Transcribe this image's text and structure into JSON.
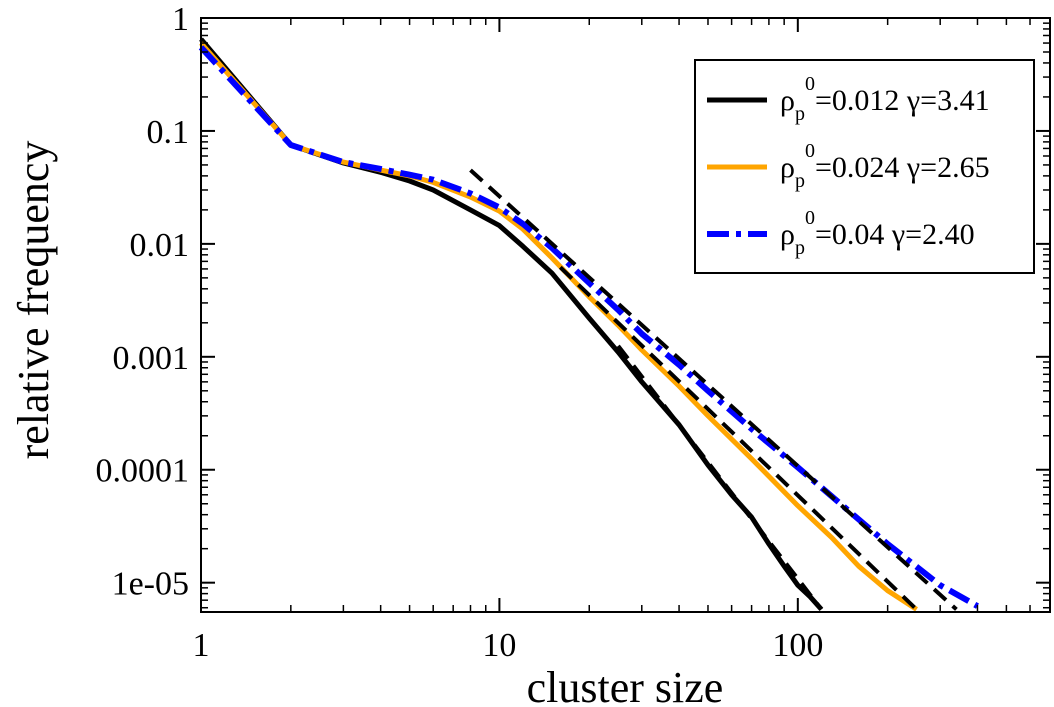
{
  "chart_data": {
    "type": "line",
    "title": "",
    "xlabel": "cluster size",
    "ylabel": "relative frequency",
    "xscale": "log",
    "yscale": "log",
    "xlim": [
      1,
      700
    ],
    "ylim": [
      5.5e-06,
      1
    ],
    "x_ticks": [
      1,
      10,
      100
    ],
    "x_tick_labels": [
      "1",
      "10",
      "100"
    ],
    "y_ticks": [
      1,
      0.1,
      0.01,
      0.001,
      0.0001,
      1e-05
    ],
    "y_tick_labels": [
      "1",
      "0.1",
      "0.01",
      "0.001",
      "0.0001",
      "1e-05"
    ],
    "legend_position": "top-right",
    "series": [
      {
        "name": "ρp0=0.012 γ=3.41",
        "legend": {
          "rho": "ρ",
          "sub": "p",
          "sup": "0",
          "text": "=0.012 γ=3.41"
        },
        "color": "#000000",
        "style": "solid",
        "gamma": 3.41,
        "x": [
          1,
          2,
          3,
          4,
          5,
          6,
          8,
          10,
          12,
          15,
          20,
          25,
          30,
          40,
          50,
          60,
          70,
          80,
          90,
          100,
          110,
          120
        ],
        "y": [
          0.65,
          0.075,
          0.052,
          0.043,
          0.036,
          0.03,
          0.02,
          0.0145,
          0.0095,
          0.0055,
          0.0022,
          0.0011,
          0.0006,
          0.00025,
          0.00011,
          6e-05,
          3.8e-05,
          2.2e-05,
          1.4e-05,
          9.5e-06,
          7.5e-06,
          5.8e-06
        ]
      },
      {
        "name": "ρp0=0.024 γ=2.65",
        "legend": {
          "rho": "ρ",
          "sub": "p",
          "sup": "0",
          "text": "=0.024 γ=2.65"
        },
        "color": "#ffa500",
        "style": "solid",
        "gamma": 2.65,
        "x": [
          1,
          2,
          3,
          4,
          5,
          6,
          8,
          10,
          12,
          15,
          20,
          25,
          30,
          40,
          50,
          70,
          100,
          130,
          160,
          200,
          250
        ],
        "y": [
          0.6,
          0.075,
          0.053,
          0.045,
          0.04,
          0.035,
          0.026,
          0.0195,
          0.0135,
          0.0075,
          0.0034,
          0.0019,
          0.00115,
          0.00055,
          0.0003,
          0.000125,
          4.8e-05,
          2.5e-05,
          1.4e-05,
          8.5e-06,
          5.8e-06
        ]
      },
      {
        "name": "ρp0=0.04 γ=2.40",
        "legend": {
          "rho": "ρ",
          "sub": "p",
          "sup": "0",
          "text": "=0.04 γ=2.40"
        },
        "color": "#0000ff",
        "style": "dash-dot",
        "gamma": 2.4,
        "x": [
          1,
          2,
          3,
          4,
          5,
          6,
          8,
          10,
          12,
          15,
          20,
          25,
          30,
          40,
          50,
          70,
          100,
          150,
          200,
          300,
          400
        ],
        "y": [
          0.55,
          0.075,
          0.053,
          0.046,
          0.041,
          0.037,
          0.028,
          0.021,
          0.015,
          0.0092,
          0.0045,
          0.0026,
          0.0016,
          0.00085,
          0.0005,
          0.00023,
          0.000105,
          4.2e-05,
          2.2e-05,
          9.5e-06,
          6.2e-06
        ]
      }
    ],
    "fits": [
      {
        "name": "power-law fit γ=3.41",
        "gamma": 3.41,
        "color": "#000000",
        "style": "dashed",
        "x": [
          25,
          120
        ],
        "y": [
          0.00125,
          5.8e-06
        ]
      },
      {
        "name": "power-law fit γ=2.65",
        "gamma": 2.65,
        "color": "#000000",
        "style": "dashed",
        "x": [
          16,
          250
        ],
        "y": [
          0.0062,
          5.8e-06
        ]
      },
      {
        "name": "power-law fit γ=2.40",
        "gamma": 2.4,
        "color": "#000000",
        "style": "dashed",
        "x": [
          8,
          340
        ],
        "y": [
          0.045,
          5.8e-06
        ]
      }
    ]
  }
}
